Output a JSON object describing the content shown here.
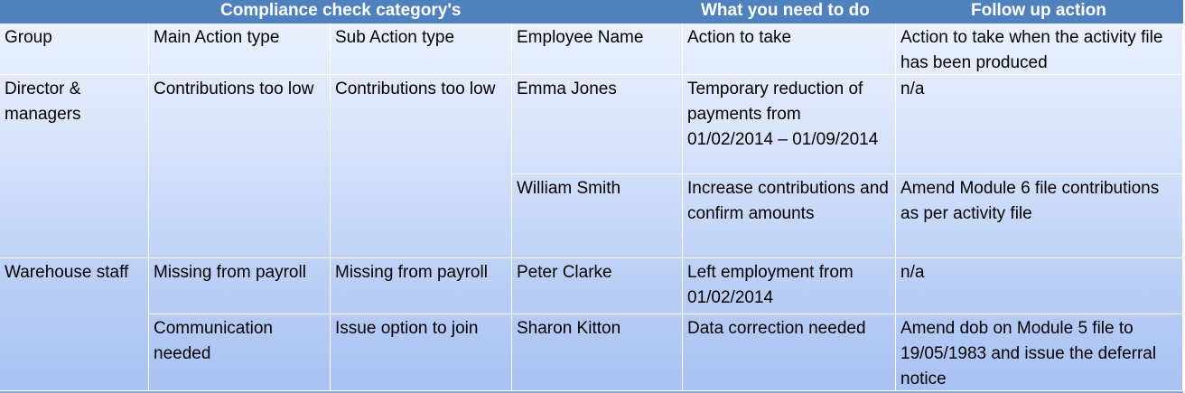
{
  "header": {
    "compliance": "Compliance check category's",
    "what_to_do": "What you need to do",
    "follow_up": "Follow up action"
  },
  "columns": {
    "group": "Group",
    "main_action_type": "Main Action type",
    "sub_action_type": "Sub Action type",
    "employee_name": "Employee  Name",
    "action_to_take": "Action to take",
    "follow_action": "Action to take when the activity file has been produced"
  },
  "groups": [
    {
      "group": "Director & managers",
      "main_action": "Contributions too low",
      "sub_action": "Contributions too low",
      "employees": [
        {
          "name": "Emma Jones",
          "action": "Temporary reduction of payments from 01/02/2014 – 01/09/2014",
          "follow_up": "n/a"
        },
        {
          "name": "William Smith",
          "action": "Increase contributions and confirm amounts",
          "follow_up": "Amend Module 6 file contributions as per activity file"
        }
      ]
    },
    {
      "group": "Warehouse staff",
      "rows": [
        {
          "main_action": "Missing from payroll",
          "sub_action": "Missing from payroll",
          "name": "Peter Clarke",
          "action": "Left employment from 01/02/2014",
          "follow_up": "n/a"
        },
        {
          "main_action": "Communication needed",
          "sub_action": "Issue option to join",
          "name": "Sharon Kitton",
          "action": "Data correction needed",
          "follow_up": "Amend dob on Module 5 file to 19/05/1983 and issue the deferral notice"
        }
      ]
    }
  ]
}
